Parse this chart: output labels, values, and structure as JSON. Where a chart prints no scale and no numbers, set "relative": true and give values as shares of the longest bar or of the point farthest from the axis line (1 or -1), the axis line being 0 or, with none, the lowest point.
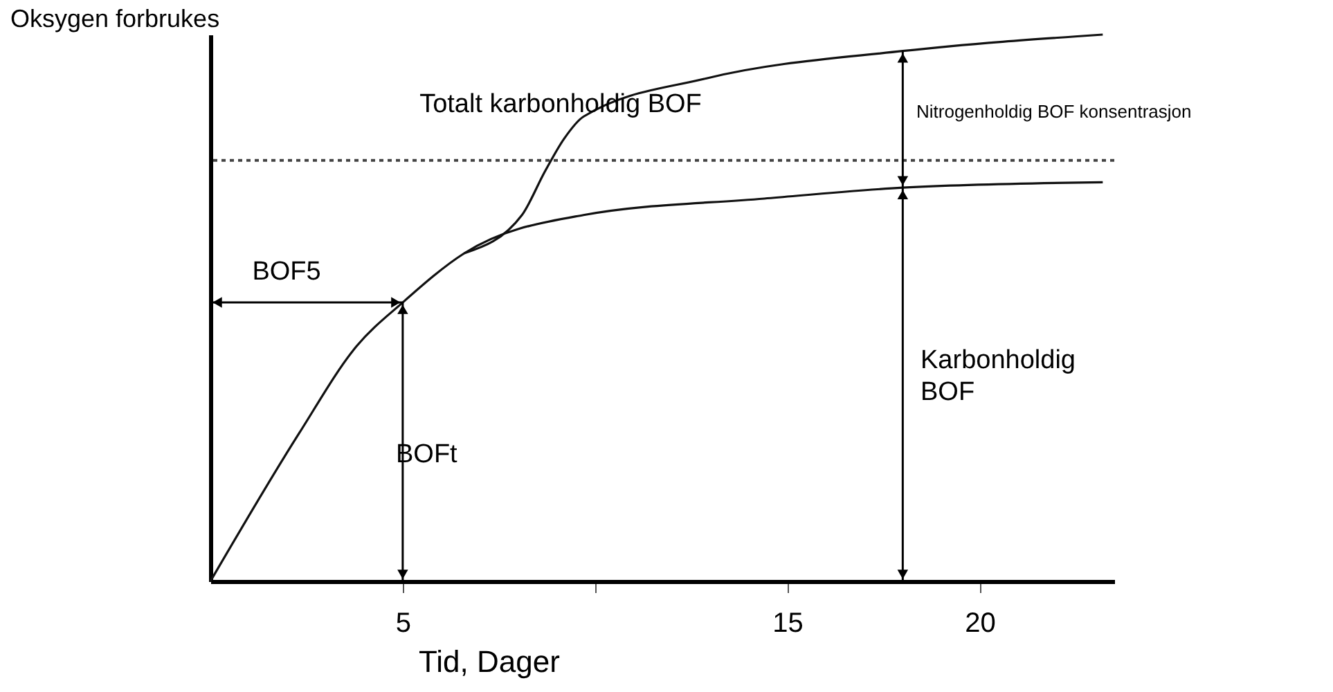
{
  "chart_data": {
    "type": "line",
    "relative": true,
    "ylabel": "Oksygen forbrukes",
    "xlabel": "Tid, Dager",
    "xlim": [
      0,
      23.5
    ],
    "xticks": [
      5,
      {
        "value": 10,
        "label": null
      },
      15,
      20
    ],
    "grid": false,
    "marker": "none",
    "line_style": "solid",
    "series": [
      {
        "color": "#111111",
        "x": [
          0,
          2.3,
          3.8,
          5,
          6.6,
          9.7,
          14.4,
          18,
          23.2
        ],
        "values": [
          0,
          0.27,
          0.43,
          0.51,
          0.6,
          0.67,
          0.7,
          0.72,
          0.73
        ]
      },
      {
        "color": "#111111",
        "x": [
          6.6,
          8.1,
          8.7,
          9.2,
          9.7,
          12.9,
          18,
          23.2
        ],
        "values": [
          0.6,
          0.67,
          0.75,
          0.81,
          0.85,
          0.92,
          0.97,
          1
        ]
      }
    ],
    "ref_lines": [
      {
        "axis": "y",
        "value": 0.77,
        "line_style": "dotted",
        "color": "#444444"
      }
    ],
    "annotations": [
      "Totalt karbonholdig BOF",
      "Nitrogenholdig BOF konsentrasjon",
      "BOF5",
      "BOFt",
      "Karbonholdig\nBOF"
    ]
  }
}
